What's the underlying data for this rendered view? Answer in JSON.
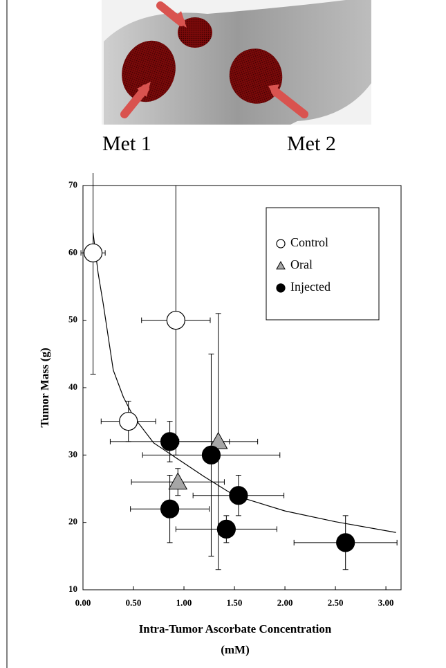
{
  "image_labels": [
    "Met 1",
    "Met 2"
  ],
  "chart_data": {
    "type": "scatter",
    "ylabel": "Tumor Mass (g)",
    "xlabel_lines": [
      "Intra-Tumor Ascorbate Concentration",
      "(mM)"
    ],
    "xlim": [
      0,
      3.15
    ],
    "ylim": [
      10,
      70
    ],
    "xticks": [
      {
        "value": 0,
        "label": "0.00"
      },
      {
        "value": 0.5,
        "label": "0.50"
      },
      {
        "value": 1,
        "label": "1.00"
      },
      {
        "value": 1.5,
        "label": "1.50"
      },
      {
        "value": 2,
        "label": "2.00"
      },
      {
        "value": 2.5,
        "label": "2.50"
      },
      {
        "value": 3,
        "label": "3.00"
      }
    ],
    "yticks": [
      10,
      20,
      30,
      40,
      50,
      60,
      70
    ],
    "series": [
      {
        "name": "Control",
        "marker": "circle",
        "color": "#ffffff",
        "x": [
          0.1,
          0.45,
          0.92
        ],
        "y": [
          60,
          35,
          50
        ],
        "xerr": [
          0.12,
          0.27,
          0.34
        ],
        "yerr": [
          18,
          3,
          20
        ]
      },
      {
        "name": "Oral",
        "marker": "triangle",
        "color": "#a6a6a6",
        "x": [
          0.94,
          1.34
        ],
        "y": [
          26,
          32
        ],
        "xerr": [
          0.46,
          0.39
        ],
        "yerr": [
          2,
          19
        ]
      },
      {
        "name": "Injected",
        "marker": "circle",
        "color": "#000000",
        "x": [
          0.86,
          1.27,
          0.86,
          1.54,
          1.42,
          2.6
        ],
        "y": [
          32,
          30,
          22,
          24,
          19,
          17
        ],
        "xerr": [
          0.59,
          0.68,
          0.39,
          0.45,
          0.5,
          0.51
        ],
        "yerr": [
          3,
          15,
          5,
          3,
          2,
          4
        ]
      }
    ],
    "fit": {
      "x": [
        0.1,
        0.15,
        0.2,
        0.3,
        0.4,
        0.5,
        0.7,
        0.9,
        1.2,
        1.5,
        2,
        2.5,
        3.1
      ],
      "y": [
        63,
        57,
        52.5,
        42.6,
        38.6,
        35.7,
        31.8,
        29.8,
        26.8,
        24,
        21.7,
        20.1,
        18.5
      ],
      "color": "#000000"
    }
  }
}
